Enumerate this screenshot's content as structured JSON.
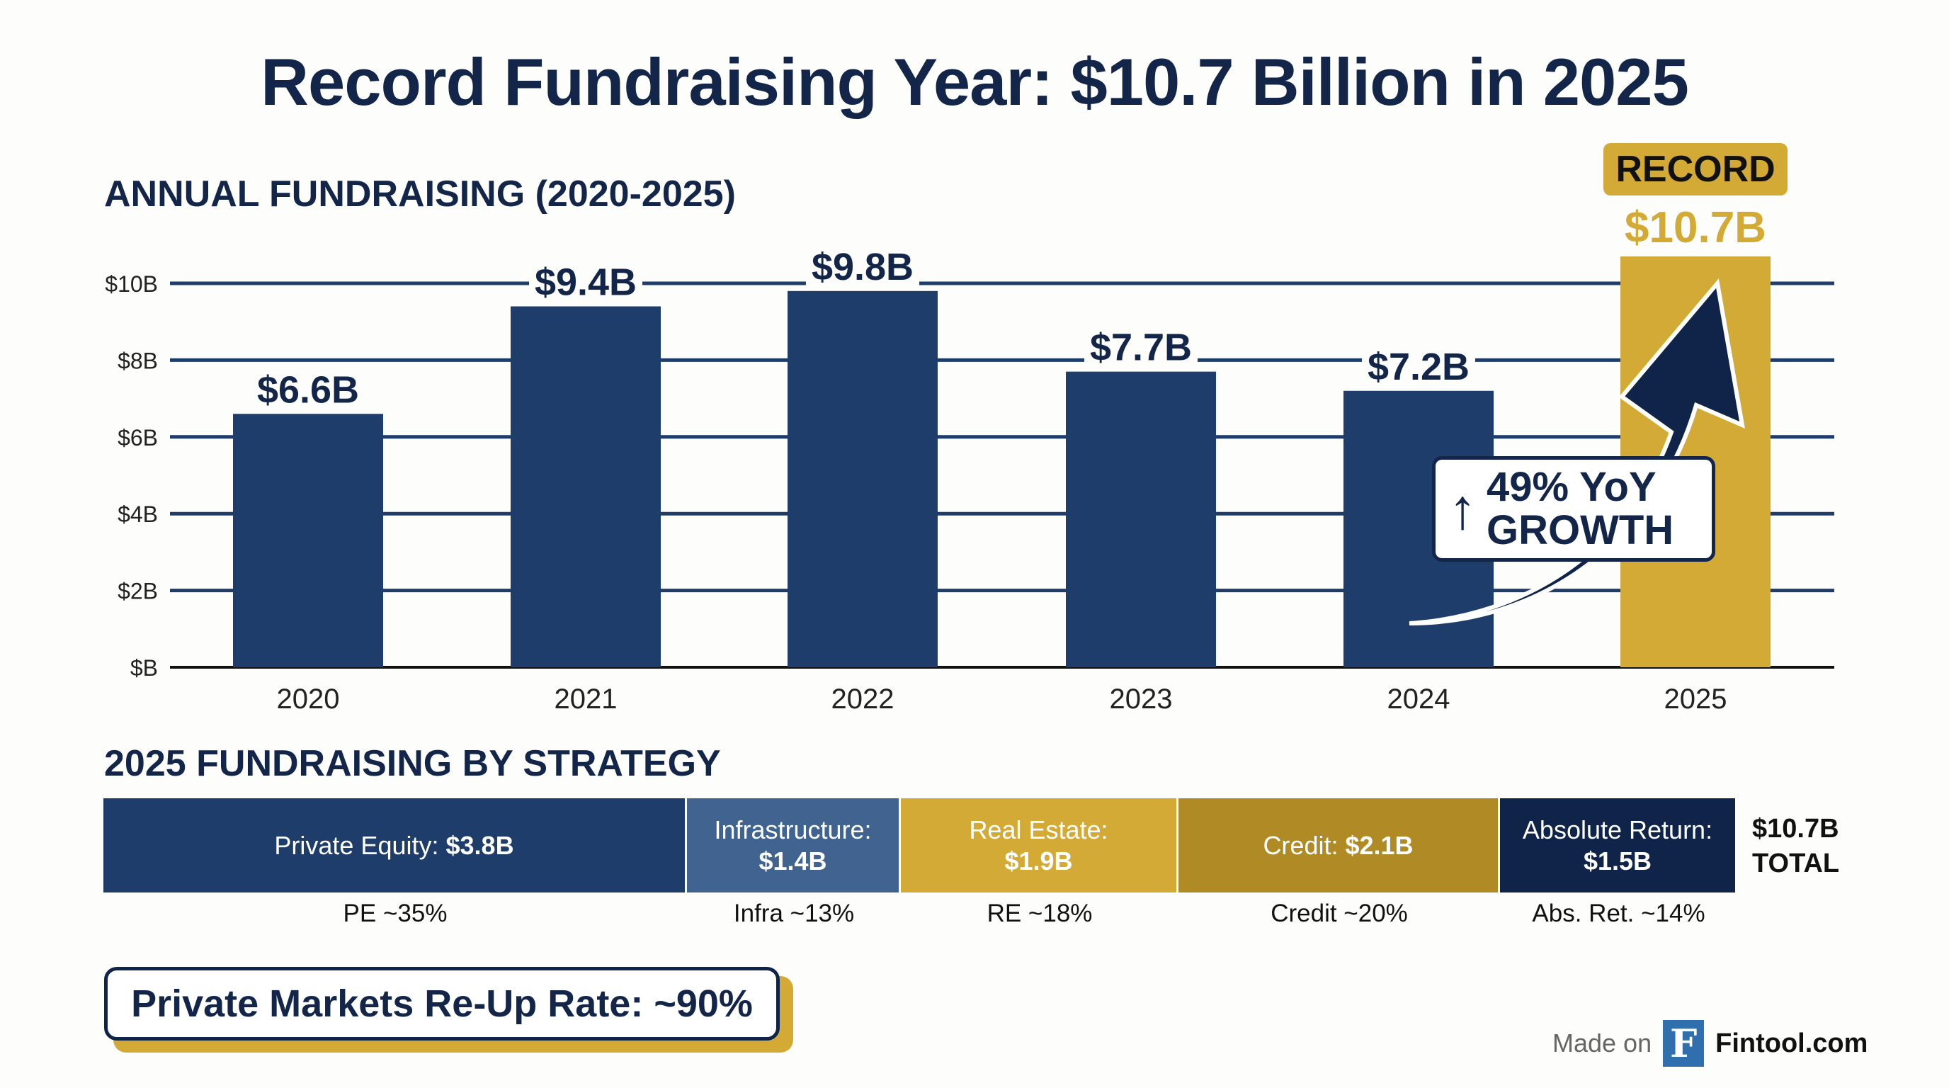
{
  "title": "Record Fundraising Year: $10.7 Billion in 2025",
  "chart_data": [
    {
      "type": "bar",
      "title": "ANNUAL FUNDRAISING (2020-2025)",
      "categories": [
        "2020",
        "2021",
        "2022",
        "2023",
        "2024",
        "2025"
      ],
      "values": [
        6.6,
        9.4,
        9.8,
        7.7,
        7.2,
        10.7
      ],
      "value_labels": [
        "$6.6B",
        "$9.4B",
        "$9.8B",
        "$7.7B",
        "$7.2B",
        "$10.7B"
      ],
      "yticks": [
        0,
        2,
        4,
        6,
        8,
        10
      ],
      "ytick_labels": [
        "$B",
        "$2B",
        "$4B",
        "$6B",
        "$8B",
        "$10B"
      ],
      "ylim": [
        0,
        10.7
      ],
      "grid": true,
      "colors": {
        "default": "#1e3d6b",
        "highlight": "#d4aa36"
      },
      "highlight_badge": "RECORD",
      "annotation": {
        "line1": "49% YoY",
        "line2": "GROWTH",
        "icon": "arrow-up-icon"
      }
    },
    {
      "type": "stacked-bar",
      "title": "2025 FUNDRAISING BY STRATEGY",
      "segments": [
        {
          "label": "Private Equity:",
          "value_label": "$3.8B",
          "value": 3.8,
          "pct_label": "PE ~35%",
          "color": "#1e3d6b",
          "layout": "inline"
        },
        {
          "label": "Infrastructure:",
          "value_label": "$1.4B",
          "value": 1.4,
          "pct_label": "Infra ~13%",
          "color": "#41638f",
          "layout": "stacked"
        },
        {
          "label": "Real Estate:",
          "value_label": "$1.9B",
          "value": 1.9,
          "pct_label": "RE ~18%",
          "color": "#d4aa36",
          "layout": "stacked"
        },
        {
          "label": "Credit:",
          "value_label": "$2.1B",
          "value": 2.1,
          "pct_label": "Credit ~20%",
          "color": "#b08a25",
          "layout": "inline"
        },
        {
          "label": "Absolute Return:",
          "value_label": "$1.5B",
          "value": 1.5,
          "pct_label": "Abs. Ret. ~14%",
          "color": "#0f2448",
          "layout": "stacked"
        }
      ],
      "total_value": "$10.7B",
      "total_label": "TOTAL"
    }
  ],
  "reup": "Private Markets Re-Up Rate: ~90%",
  "footer": {
    "made_on": "Made on",
    "logo_letter": "F",
    "brand": "Fintool.com"
  }
}
